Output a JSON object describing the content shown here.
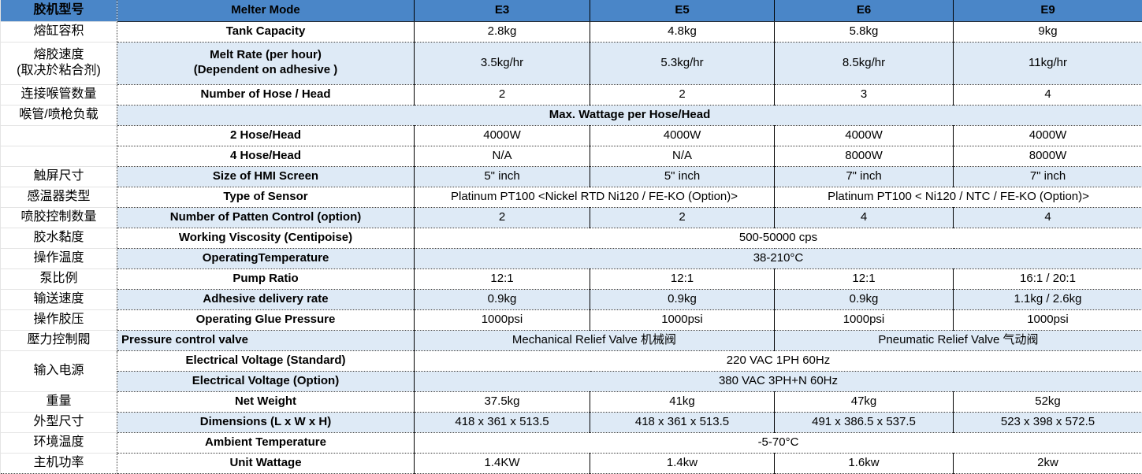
{
  "colors": {
    "header_bg": "#4A86C8",
    "band_bg": "#DEEAF6",
    "row_bg": "#FFFFFF",
    "grid_dotted": "#3C3C3C",
    "grid_solid": "#000000",
    "left_col_grid": "#E4E4E4",
    "text": "#000000"
  },
  "table": {
    "header": {
      "label_cn": "胶机型号",
      "label_en": "Melter Mode"
    },
    "models": [
      "E3",
      "E5",
      "E6",
      "E9"
    ],
    "rows": [
      {
        "cn": "熔缸容积",
        "en": "Tank Capacity",
        "type": "cols",
        "bg": "white",
        "values": [
          "2.8kg",
          "4.8kg",
          "5.8kg",
          "9kg"
        ]
      },
      {
        "cn": "熔胶速度\n(取决於粘合剂)",
        "en": "Melt Rate (per hour)\n(Dependent on adhesive )",
        "type": "cols",
        "bg": "alt",
        "tall": true,
        "values": [
          "3.5kg/hr",
          "5.3kg/hr",
          "8.5kg/hr",
          "11kg/hr"
        ]
      },
      {
        "cn": "连接喉管数量",
        "en": "Number of Hose / Head",
        "type": "cols",
        "bg": "white",
        "values": [
          "2",
          "2",
          "3",
          "4"
        ]
      },
      {
        "cn": "喉管/喷枪负载",
        "en": "Max. Wattage per Hose/Head",
        "type": "banner",
        "bg": "alt",
        "values": []
      },
      {
        "cn": "",
        "en": "2 Hose/Head",
        "type": "cols",
        "bg": "white",
        "values": [
          "4000W",
          "4000W",
          "4000W",
          "4000W"
        ]
      },
      {
        "cn": "",
        "en": "4 Hose/Head",
        "type": "cols",
        "bg": "white",
        "values": [
          "N/A",
          "N/A",
          "8000W",
          "8000W"
        ]
      },
      {
        "cn": "触屏尺寸",
        "en": "Size of HMI Screen",
        "type": "cols",
        "bg": "alt",
        "values": [
          "5\" inch",
          "5\" inch",
          "7\" inch",
          "7\" inch"
        ]
      },
      {
        "cn": "感温器类型",
        "en": "Type of Sensor",
        "type": "half",
        "bg": "white",
        "values": [
          "Platinum PT100  <Nickel RTD Ni120 / FE-KO (Option)>",
          "Platinum  PT100  < Ni120 / NTC / FE-KO (Option)>"
        ]
      },
      {
        "cn": "喷胶控制数量",
        "en": "Number of Patten Control (option)",
        "type": "cols",
        "bg": "alt",
        "values": [
          "2",
          "2",
          "4",
          "4"
        ]
      },
      {
        "cn": "胶水黏度",
        "en": "Working Viscosity (Centipoise)",
        "type": "merged",
        "bg": "white",
        "values": [
          "500-50000 cps"
        ]
      },
      {
        "cn": "操作温度",
        "en": "OperatingTemperature",
        "type": "merged",
        "bg": "alt",
        "values": [
          "38-210°C"
        ]
      },
      {
        "cn": "泵比例",
        "en": "Pump Ratio",
        "type": "cols",
        "bg": "white",
        "values": [
          "12:1",
          "12:1",
          "12:1",
          "16:1 / 20:1"
        ]
      },
      {
        "cn": "输送速度",
        "en": "Adhesive delivery rate",
        "type": "cols",
        "bg": "alt",
        "values": [
          "0.9kg",
          "0.9kg",
          "0.9kg",
          "1.1kg / 2.6kg"
        ]
      },
      {
        "cn": "操作胶压",
        "en": "Operating Glue Pressure",
        "type": "cols",
        "bg": "white",
        "values": [
          "1000psi",
          "1000psi",
          "1000psi",
          "1000psi"
        ]
      },
      {
        "cn": "壓力控制閥",
        "en": "Pressure control valve",
        "type": "half",
        "bg": "alt",
        "en_align": "left",
        "values": [
          "Mechanical Relief Valve 机械阀",
          "Pneumatic  Relief Valve 气动阀"
        ]
      },
      {
        "cn": "输入电源",
        "cn_rowspan": 2,
        "en": "Electrical Voltage (Standard)",
        "type": "merged",
        "bg": "white",
        "values": [
          "220 VAC 1PH 60Hz"
        ]
      },
      {
        "cn": null,
        "en": "Electrical Voltage (Option)",
        "type": "merged",
        "bg": "alt",
        "values": [
          "380 VAC 3PH+N 60Hz"
        ]
      },
      {
        "cn": "重量",
        "en": "Net Weight",
        "type": "cols",
        "bg": "white",
        "values": [
          "37.5kg",
          "41kg",
          "47kg",
          "52kg"
        ]
      },
      {
        "cn": "外型尺寸",
        "en": "Dimensions (L x W x H)",
        "type": "cols",
        "bg": "alt",
        "values": [
          "418 x 361 x 513.5",
          "418 x 361 x 513.5",
          "491 x 386.5 x 537.5",
          "523 x 398 x 572.5"
        ]
      },
      {
        "cn": "环境温度",
        "en": "Ambient Temperature",
        "type": "merged",
        "bg": "white",
        "values": [
          "-5-70°C"
        ]
      },
      {
        "cn": "主机功率",
        "en": "Unit Wattage",
        "type": "cols",
        "bg": "white",
        "values": [
          "1.4KW",
          "1.4kw",
          "1.6kw",
          "2kw"
        ]
      }
    ]
  }
}
